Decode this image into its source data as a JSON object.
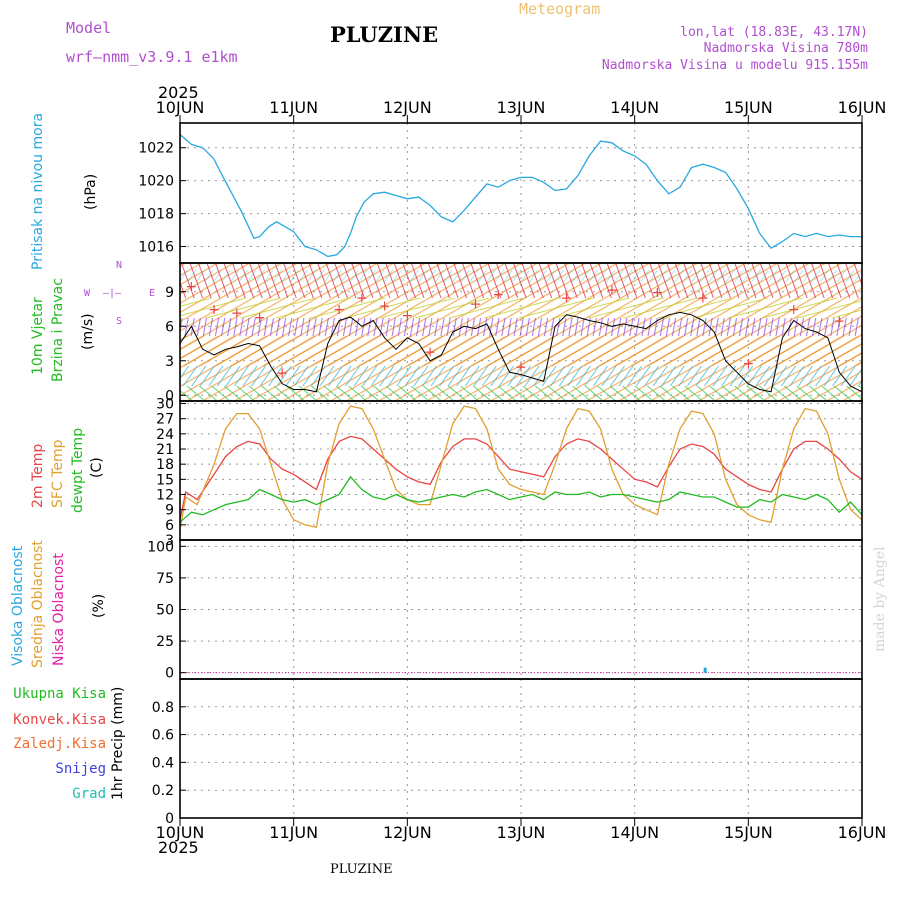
{
  "header": {
    "model_label": "Model",
    "model_name": "wrf—nmm_v3.9.1  e1km",
    "title": "PLUZINE",
    "meteogram": "Meteogram",
    "lonlat": "lon,lat (18.83E, 43.17N)",
    "altitude": "Nadmorska Visina 780m",
    "model_altitude": "Nadmorska Visina u modelu 915.155m",
    "year_top": "2025",
    "year_bottom": "2025",
    "footer": "PLUZINE",
    "credit": "made by Angel"
  },
  "colors": {
    "pressure": "#29a8e0",
    "temp2m": "#e84545",
    "sfc": "#e0a030",
    "dewpt": "#22bb22",
    "purple": "#b04fd0"
  },
  "chart_data": [
    {
      "type": "line",
      "panel": "pressure",
      "ylabel_1": "Pritisak na nivou mora",
      "ylabel_2": "(hPa)",
      "ylim": [
        1015,
        1023.5
      ],
      "yticks": [
        "1016",
        "1018",
        "1020",
        "1022"
      ],
      "xticks": [
        "10JUN",
        "11JUN",
        "12JUN",
        "13JUN",
        "14JUN",
        "15JUN",
        "16JUN"
      ],
      "grid": true,
      "series": [
        {
          "x": [
            0,
            0.1,
            0.2,
            0.3,
            0.35,
            0.45,
            0.55,
            0.65,
            0.7,
            0.78,
            0.85,
            0.95,
            1.0,
            1.1,
            1.2,
            1.3,
            1.38,
            1.45,
            1.5,
            1.55,
            1.62,
            1.7,
            1.8,
            1.9,
            2.0,
            2.1,
            2.2,
            2.3,
            2.4,
            2.5,
            2.6,
            2.7,
            2.8,
            2.9,
            3.0,
            3.1,
            3.2,
            3.3,
            3.4,
            3.5,
            3.6,
            3.7,
            3.8,
            3.9,
            4.0,
            4.1,
            4.2,
            4.3,
            4.4,
            4.5,
            4.6,
            4.7,
            4.8,
            4.9,
            5.0,
            5.1,
            5.2,
            5.3,
            5.4,
            5.5,
            5.6,
            5.7,
            5.8,
            5.9,
            6.0
          ],
          "values": [
            1022.8,
            1022.2,
            1022.0,
            1021.3,
            1020.6,
            1019.3,
            1018.0,
            1016.5,
            1016.6,
            1017.2,
            1017.5,
            1017.1,
            1016.9,
            1016.0,
            1015.8,
            1015.4,
            1015.5,
            1016.0,
            1016.8,
            1017.8,
            1018.7,
            1019.2,
            1019.3,
            1019.1,
            1018.9,
            1019.0,
            1018.5,
            1017.8,
            1017.5,
            1018.2,
            1019.0,
            1019.8,
            1019.6,
            1020.0,
            1020.2,
            1020.2,
            1019.9,
            1019.4,
            1019.5,
            1020.3,
            1021.5,
            1022.4,
            1022.3,
            1021.8,
            1021.5,
            1021.0,
            1020.0,
            1019.2,
            1019.6,
            1020.8,
            1021.0,
            1020.8,
            1020.5,
            1019.5,
            1018.3,
            1016.8,
            1015.9,
            1016.3,
            1016.8,
            1016.6,
            1016.8,
            1016.6,
            1016.7,
            1016.6,
            1016.6
          ],
          "color": "#29a8e0"
        }
      ]
    },
    {
      "type": "line",
      "panel": "wind",
      "ylabel_1": "10m Vjetar",
      "ylabel_2": "Brzina i Pravac",
      "ylabel_3": "(m/s)",
      "compass": {
        "n": "N",
        "w": "W",
        "e": "E",
        "s": "S",
        "ne": "—|—"
      },
      "ylim": [
        -0.5,
        11.5
      ],
      "yticks": [
        "0",
        "3",
        "6",
        "9"
      ],
      "grid": true,
      "series": [
        {
          "x": [
            0,
            0.1,
            0.2,
            0.3,
            0.4,
            0.5,
            0.6,
            0.7,
            0.8,
            0.9,
            1.0,
            1.1,
            1.2,
            1.3,
            1.4,
            1.5,
            1.6,
            1.7,
            1.8,
            1.9,
            2.0,
            2.1,
            2.2,
            2.3,
            2.4,
            2.5,
            2.6,
            2.7,
            2.8,
            2.9,
            3.0,
            3.1,
            3.2,
            3.3,
            3.4,
            3.5,
            3.6,
            3.7,
            3.8,
            3.9,
            4.0,
            4.1,
            4.2,
            4.3,
            4.4,
            4.5,
            4.6,
            4.7,
            4.8,
            4.9,
            5.0,
            5.1,
            5.2,
            5.3,
            5.4,
            5.5,
            5.6,
            5.7,
            5.8,
            5.9,
            6.0
          ],
          "values": [
            4.5,
            6.0,
            4.0,
            3.5,
            4.0,
            4.2,
            4.5,
            4.3,
            2.5,
            1.0,
            0.5,
            0.5,
            0.3,
            4.5,
            6.5,
            6.8,
            6.0,
            6.5,
            5.0,
            4.0,
            5.0,
            4.5,
            3.0,
            3.5,
            5.5,
            6.0,
            5.8,
            6.2,
            4.0,
            2.0,
            1.8,
            1.5,
            1.2,
            6.0,
            7.0,
            6.8,
            6.5,
            6.3,
            6.0,
            6.2,
            6.0,
            5.8,
            6.5,
            7.0,
            7.2,
            7.0,
            6.5,
            5.5,
            3.0,
            2.0,
            1.0,
            0.5,
            0.3,
            5.0,
            6.5,
            5.8,
            5.5,
            5.0,
            2.0,
            0.8,
            0.3
          ],
          "color": "#000000"
        },
        {
          "name": "+",
          "x": [
            0.1,
            0.3,
            0.5,
            0.7,
            0.9,
            1.4,
            1.6,
            1.8,
            2.0,
            2.2,
            2.6,
            2.8,
            3.0,
            3.4,
            3.8,
            4.2,
            4.6,
            5.0,
            5.4,
            5.8
          ],
          "values": [
            9.5,
            7.5,
            7.2,
            6.8,
            2.0,
            7.5,
            8.5,
            7.8,
            7.0,
            3.8,
            8.0,
            8.8,
            2.5,
            8.5,
            9.2,
            9.0,
            8.5,
            2.8,
            7.5,
            6.5
          ],
          "color": "#e84545"
        }
      ]
    },
    {
      "type": "line",
      "panel": "temperature",
      "ylabel_1": "2m Temp",
      "ylabel_2": "SFC Temp",
      "ylabel_3": "dewpt Temp",
      "ylabel_4": "(C)",
      "ylim": [
        3,
        30.5
      ],
      "yticks": [
        "3",
        "6",
        "9",
        "12",
        "15",
        "18",
        "21",
        "24",
        "27",
        "30"
      ],
      "grid": true,
      "series": [
        {
          "name": "2m Temp",
          "color": "#e84545",
          "x": [
            0,
            0.05,
            0.15,
            0.3,
            0.4,
            0.5,
            0.6,
            0.7,
            0.8,
            0.9,
            1.0,
            1.1,
            1.2,
            1.3,
            1.4,
            1.5,
            1.6,
            1.7,
            1.8,
            1.9,
            2.0,
            2.1,
            2.2,
            2.3,
            2.4,
            2.5,
            2.6,
            2.7,
            2.8,
            2.9,
            3.0,
            3.1,
            3.2,
            3.3,
            3.4,
            3.5,
            3.6,
            3.7,
            3.8,
            3.9,
            4.0,
            4.1,
            4.2,
            4.3,
            4.4,
            4.5,
            4.6,
            4.7,
            4.8,
            4.9,
            5.0,
            5.1,
            5.2,
            5.3,
            5.4,
            5.5,
            5.6,
            5.7,
            5.8,
            5.9,
            6.0
          ],
          "values": [
            7,
            12.5,
            11,
            16,
            19.5,
            21.5,
            22.5,
            22,
            19,
            17,
            16,
            14.5,
            13,
            19,
            22.5,
            23.5,
            23,
            21,
            19,
            17,
            15.5,
            14.5,
            14,
            18.5,
            21.5,
            23,
            23,
            22,
            19.5,
            17,
            16.5,
            16,
            15.5,
            19.5,
            22,
            23,
            22.5,
            21,
            19,
            17,
            15,
            14.5,
            13.5,
            17.5,
            21,
            22,
            21.5,
            20,
            17,
            15.5,
            14,
            13,
            12.5,
            17,
            21,
            22.5,
            22.5,
            21,
            19,
            16.5,
            15
          ]
        },
        {
          "name": "SFC Temp",
          "color": "#e0a030",
          "x": [
            0,
            0.05,
            0.15,
            0.3,
            0.4,
            0.5,
            0.6,
            0.7,
            0.8,
            0.9,
            1.0,
            1.1,
            1.2,
            1.3,
            1.4,
            1.5,
            1.6,
            1.7,
            1.8,
            1.9,
            2.0,
            2.1,
            2.2,
            2.3,
            2.4,
            2.5,
            2.6,
            2.7,
            2.8,
            2.9,
            3.0,
            3.1,
            3.2,
            3.3,
            3.4,
            3.5,
            3.6,
            3.7,
            3.8,
            3.9,
            4.0,
            4.1,
            4.2,
            4.3,
            4.4,
            4.5,
            4.6,
            4.7,
            4.8,
            4.9,
            5.0,
            5.1,
            5.2,
            5.3,
            5.4,
            5.5,
            5.6,
            5.7,
            5.8,
            5.9,
            6.0
          ],
          "values": [
            5,
            11.5,
            10,
            18,
            25,
            28,
            28,
            25,
            18,
            11,
            7,
            6,
            5.5,
            18,
            26,
            29.5,
            29,
            25,
            19,
            13,
            11,
            10,
            10,
            18,
            26,
            29.5,
            29,
            25,
            17,
            14,
            13,
            12.5,
            12,
            18,
            25,
            29,
            28.5,
            25,
            17,
            12,
            10,
            9,
            8,
            18,
            25,
            28.5,
            28,
            24,
            15,
            10,
            8,
            7,
            6.5,
            17,
            25,
            29,
            28.5,
            24,
            15,
            9,
            7
          ]
        },
        {
          "name": "dewpt Temp",
          "color": "#22bb22",
          "x": [
            0,
            0.1,
            0.2,
            0.3,
            0.4,
            0.5,
            0.6,
            0.7,
            0.8,
            0.9,
            1.0,
            1.1,
            1.2,
            1.3,
            1.4,
            1.5,
            1.6,
            1.7,
            1.8,
            1.9,
            2.0,
            2.1,
            2.2,
            2.3,
            2.4,
            2.5,
            2.6,
            2.7,
            2.8,
            2.9,
            3.0,
            3.1,
            3.2,
            3.3,
            3.4,
            3.5,
            3.6,
            3.7,
            3.8,
            3.9,
            4.0,
            4.1,
            4.2,
            4.3,
            4.4,
            4.5,
            4.6,
            4.7,
            4.8,
            4.9,
            5.0,
            5.1,
            5.2,
            5.3,
            5.4,
            5.5,
            5.6,
            5.7,
            5.8,
            5.9,
            6.0
          ],
          "values": [
            6.5,
            8.5,
            8,
            9,
            10,
            10.5,
            11,
            13,
            12,
            11,
            10.5,
            11,
            10,
            11,
            12,
            15.5,
            13,
            11.5,
            11,
            12,
            11,
            10.5,
            11,
            11.5,
            12,
            11.5,
            12.5,
            13,
            12,
            11,
            11.5,
            12,
            11,
            12.5,
            12,
            12,
            12.5,
            11.5,
            12,
            12,
            11.5,
            11,
            10.5,
            11,
            12.5,
            12,
            11.5,
            11.5,
            10.5,
            9.5,
            9.5,
            11,
            10.5,
            12,
            11.5,
            11,
            12,
            11,
            8.5,
            10.5,
            8
          ]
        }
      ]
    },
    {
      "type": "bar",
      "panel": "cloud",
      "ylabel_1": "Visoka Oblacnost",
      "ylabel_2": "Srednja Oblacnost",
      "ylabel_3": "Niska Oblacnost",
      "ylabel_4": "(%)",
      "ylim": [
        -5,
        105
      ],
      "yticks": [
        "0",
        "25",
        "50",
        "75",
        "100"
      ],
      "grid": true,
      "series": [
        {
          "name": "Visoka Oblacnost",
          "color": "#29a8e0",
          "x": [
            4.62
          ],
          "values": [
            4
          ]
        }
      ]
    },
    {
      "type": "bar",
      "panel": "precip",
      "legend": [
        "Ukupna Kisa",
        "Konvek.Kisa",
        "Zaledj.Kisa",
        "Snijeg",
        "Grad"
      ],
      "legend_colors": [
        "#22bb22",
        "#e84545",
        "#f07030",
        "#4040e0",
        "#20c0b0"
      ],
      "ylabel_1": "1hr Precip (mm)",
      "ylim": [
        0,
        1
      ],
      "yticks": [
        "0",
        "0.2",
        "0.4",
        "0.6",
        "0.8"
      ],
      "grid": true,
      "series": []
    }
  ]
}
